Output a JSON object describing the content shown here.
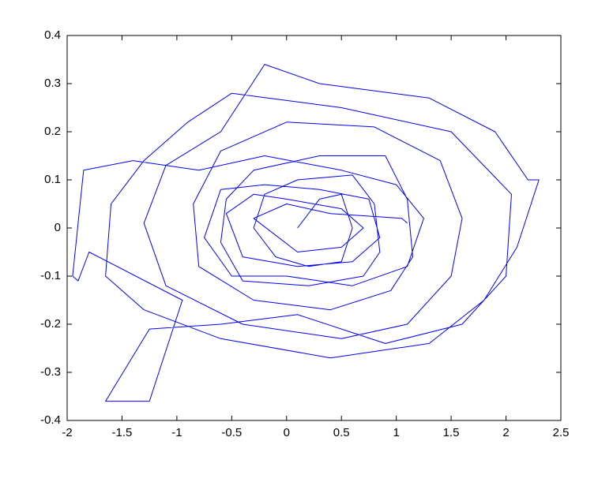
{
  "chart_data": {
    "type": "line",
    "x": [
      0.1,
      0.3,
      0.5,
      0.6,
      0.5,
      0.2,
      -0.1,
      -0.3,
      -0.2,
      0.1,
      0.6,
      0.8,
      0.85,
      0.7,
      0.2,
      -0.4,
      -0.6,
      -0.55,
      -0.3,
      0.3,
      0.9,
      1.1,
      1.15,
      0.95,
      0.4,
      -0.3,
      -0.8,
      -0.85,
      -0.6,
      0,
      0.8,
      1.4,
      1.6,
      1.5,
      1.1,
      0.5,
      -0.4,
      -1.1,
      -1.3,
      -1.1,
      -0.6,
      -0.2,
      0.3,
      1.3,
      1.9,
      2.2,
      2.3,
      2.1,
      1.8,
      1.3,
      0.4,
      -0.6,
      -1.3,
      -1.65,
      -1.6,
      -1.3,
      -0.9,
      -0.5,
      0.5,
      1.5,
      2.05,
      2.0,
      1.6,
      0.9,
      0.1,
      -0.6,
      -1.25,
      -1.65,
      -1.25,
      -0.95,
      -1.8,
      -1.9,
      -1.95,
      -1.85,
      -1.4,
      -0.8,
      -0.2,
      0.5,
      1.0,
      1.25,
      1.1,
      0.6,
      0,
      -0.5,
      -0.75,
      -0.6,
      -0.2,
      0.3,
      0.75,
      0.85,
      0.6,
      0.1,
      -0.4,
      -0.55,
      -0.3,
      0,
      0.5,
      0.7,
      0.5,
      0.1,
      -0.3,
      0,
      0.4,
      1.05,
      1.1
    ],
    "series": [
      {
        "color": "#0000ff",
        "values": [
          0,
          0.06,
          0.07,
          0,
          -0.07,
          -0.08,
          -0.06,
          0,
          0.07,
          0.1,
          0.11,
          0.05,
          -0.05,
          -0.1,
          -0.12,
          -0.11,
          -0.03,
          0.06,
          0.12,
          0.15,
          0.15,
          0.06,
          -0.06,
          -0.13,
          -0.17,
          -0.15,
          -0.08,
          0.05,
          0.16,
          0.22,
          0.21,
          0.14,
          0.02,
          -0.1,
          -0.2,
          -0.23,
          -0.2,
          -0.12,
          0.01,
          0.13,
          0.2,
          0.34,
          0.3,
          0.27,
          0.2,
          0.1,
          0.1,
          -0.04,
          -0.15,
          -0.24,
          -0.27,
          -0.23,
          -0.17,
          -0.1,
          0.05,
          0.14,
          0.22,
          0.28,
          0.25,
          0.2,
          0.07,
          -0.1,
          -0.2,
          -0.24,
          -0.18,
          -0.2,
          -0.21,
          -0.36,
          -0.36,
          -0.15,
          -0.05,
          -0.11,
          -0.1,
          0.12,
          0.14,
          0.12,
          0.15,
          0.12,
          0.09,
          0.02,
          -0.08,
          -0.12,
          -0.1,
          -0.1,
          -0.02,
          0.08,
          0.09,
          0.08,
          0.06,
          -0.02,
          -0.07,
          -0.08,
          -0.06,
          0.03,
          0.07,
          0.06,
          0.04,
          0,
          -0.04,
          -0.05,
          0.02,
          0.05,
          0.03,
          0.02,
          0.01
        ]
      }
    ],
    "xlim": [
      -2,
      2.5
    ],
    "xticks": [
      -2,
      -1.5,
      -1,
      -0.5,
      0,
      0.5,
      1,
      1.5,
      2,
      2.5
    ],
    "ylim": [
      -0.4,
      0.4
    ],
    "yticks": [
      -0.4,
      -0.3,
      -0.2,
      -0.1,
      0,
      0.1,
      0.2,
      0.3,
      0.4
    ]
  }
}
